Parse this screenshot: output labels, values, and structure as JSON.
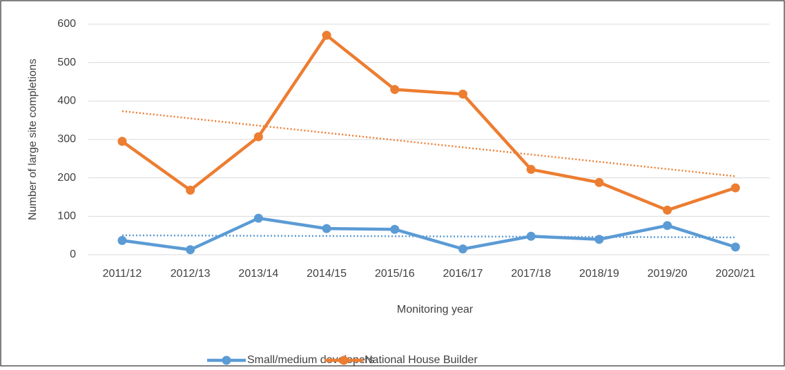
{
  "chart_data": {
    "type": "line",
    "x_label": "Monitoring year",
    "y_label": "Number of large site completions",
    "categories": [
      "2011/12",
      "2012/13",
      "2013/14",
      "2014/15",
      "2015/16",
      "2016/17",
      "2017/18",
      "2018/19",
      "2019/20",
      "2020/21"
    ],
    "series": [
      {
        "name": "Small/medium developers",
        "color": "#5b9bd5",
        "values": [
          37,
          13,
          95,
          68,
          66,
          15,
          48,
          40,
          76,
          20
        ]
      },
      {
        "name": "National House Builder",
        "color": "#ed7d31",
        "values": [
          295,
          168,
          307,
          571,
          430,
          418,
          222,
          188,
          116,
          174
        ]
      }
    ],
    "ylim": [
      0,
      600
    ],
    "yticks": [
      0,
      100,
      200,
      300,
      400,
      500,
      600
    ],
    "grid": true,
    "trendline": "linear",
    "legend": "bottom"
  }
}
